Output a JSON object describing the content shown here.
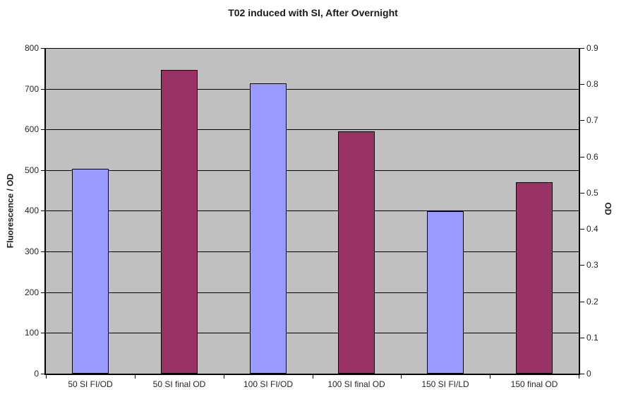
{
  "title": "T02 induced with SI, After Overnight",
  "chart_data": {
    "type": "bar",
    "title": "T02 induced with SI, After Overnight",
    "categories": [
      "50 SI FI/OD",
      "50 SI final OD",
      "100 SI FI/OD",
      "100 SI final OD",
      "150 SI FI/LD",
      "150 final OD"
    ],
    "bars": [
      {
        "category": "50 SI FI/OD",
        "series": "Fluorescence / OD",
        "axis": "left",
        "value": 503,
        "left_axis_equivalent": 503,
        "color": "#9999FF"
      },
      {
        "category": "50 SI final OD",
        "series": "OD",
        "axis": "right",
        "value": 0.84,
        "left_axis_equivalent": 750,
        "color": "#993366"
      },
      {
        "category": "100 SI FI/OD",
        "series": "Fluorescence / OD",
        "axis": "left",
        "value": 713,
        "left_axis_equivalent": 713,
        "color": "#9999FF"
      },
      {
        "category": "100 SI final OD",
        "series": "OD",
        "axis": "right",
        "value": 0.67,
        "left_axis_equivalent": 595,
        "color": "#993366"
      },
      {
        "category": "150 SI FI/LD",
        "series": "Fluorescence / OD",
        "axis": "left",
        "value": 399,
        "left_axis_equivalent": 399,
        "color": "#9999FF"
      },
      {
        "category": "150 final OD",
        "series": "OD",
        "axis": "right",
        "value": 0.53,
        "left_axis_equivalent": 471,
        "color": "#993366"
      }
    ],
    "left_axis": {
      "label": "Fluorescence / OD",
      "min": 0,
      "max": 800,
      "tick_interval": 100,
      "tick_labels": [
        "0",
        "100",
        "200",
        "300",
        "400",
        "500",
        "600",
        "700",
        "800"
      ]
    },
    "right_axis": {
      "label": "OD",
      "min": 0,
      "max": 0.9,
      "tick_interval": 0.1,
      "tick_labels": [
        "0",
        "0.1",
        "0.2",
        "0.3",
        "0.4",
        "0.5",
        "0.6",
        "0.7",
        "0.8",
        "0.9"
      ]
    },
    "xlabel": "",
    "gridlines": "horizontal, aligned to left-axis 100-unit intervals",
    "legend": "none",
    "colors": {
      "plot_background": "#C0C0C0",
      "page_background": "#FFFFFF",
      "bar_fill_fluorescence": "#9999FF",
      "bar_fill_od": "#993366",
      "bar_border": "#000000",
      "gridline": "#000000",
      "axis_line": "#000000",
      "text": "#262626"
    }
  }
}
